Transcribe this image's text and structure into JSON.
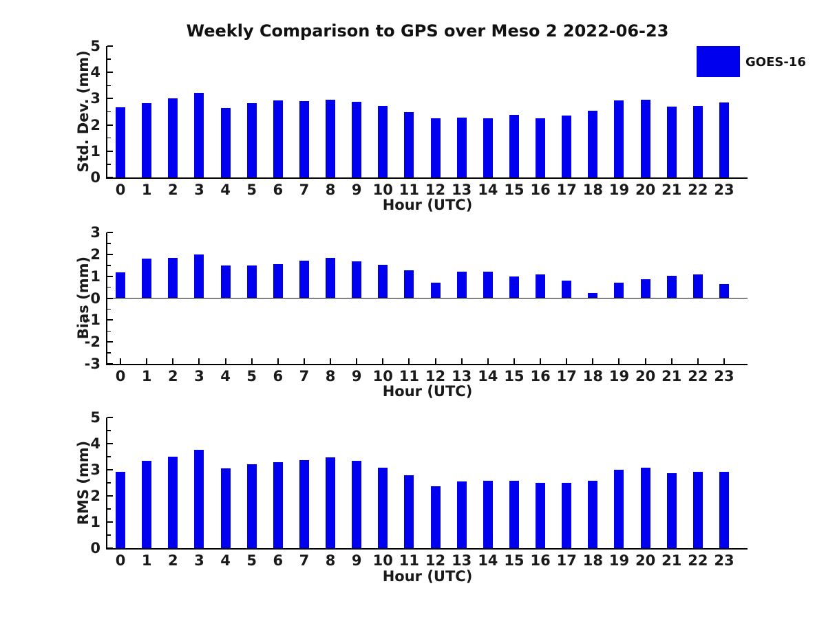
{
  "figure": {
    "title": "Weekly Comparison to GPS over Meso 2 2022-06-23",
    "legend": {
      "label": "GOES-16",
      "position": "upper right"
    }
  },
  "colors": {
    "bar": "#0000ee",
    "text": "#1a1a1a",
    "axis": "#000000"
  },
  "chart_data": [
    {
      "type": "bar",
      "series_name": "GOES-16",
      "ylabel": "Std. Dev. (mm)",
      "xlabel": "Hour (UTC)",
      "categories": [
        "0",
        "1",
        "2",
        "3",
        "4",
        "5",
        "6",
        "7",
        "8",
        "9",
        "10",
        "11",
        "12",
        "13",
        "14",
        "15",
        "16",
        "17",
        "18",
        "19",
        "20",
        "21",
        "22",
        "23"
      ],
      "values": [
        2.66,
        2.83,
        3.0,
        3.22,
        2.64,
        2.84,
        2.92,
        2.9,
        2.95,
        2.87,
        2.72,
        2.5,
        2.26,
        2.29,
        2.26,
        2.39,
        2.26,
        2.36,
        2.55,
        2.92,
        2.96,
        2.7,
        2.71,
        2.85
      ],
      "ylim": [
        0,
        5
      ],
      "yticks": [
        0,
        1,
        2,
        3,
        4,
        5
      ],
      "minor_ytick_step": 0.5,
      "grid": false
    },
    {
      "type": "bar",
      "series_name": "GOES-16",
      "ylabel": "Bias (mm)",
      "xlabel": "Hour (UTC)",
      "categories": [
        "0",
        "1",
        "2",
        "3",
        "4",
        "5",
        "6",
        "7",
        "8",
        "9",
        "10",
        "11",
        "12",
        "13",
        "14",
        "15",
        "16",
        "17",
        "18",
        "19",
        "20",
        "21",
        "22",
        "23"
      ],
      "values": [
        1.17,
        1.82,
        1.85,
        2.01,
        1.48,
        1.48,
        1.57,
        1.72,
        1.85,
        1.67,
        1.51,
        1.27,
        0.7,
        1.2,
        1.21,
        0.98,
        1.08,
        0.8,
        0.22,
        0.72,
        0.86,
        1.02,
        1.08,
        0.64
      ],
      "ylim": [
        -3,
        3
      ],
      "yticks": [
        -3,
        -2,
        -1,
        0,
        1,
        2,
        3
      ],
      "minor_ytick_step": 0.5,
      "grid": false
    },
    {
      "type": "bar",
      "series_name": "GOES-16",
      "ylabel": "RMS (mm)",
      "xlabel": "Hour (UTC)",
      "categories": [
        "0",
        "1",
        "2",
        "3",
        "4",
        "5",
        "6",
        "7",
        "8",
        "9",
        "10",
        "11",
        "12",
        "13",
        "14",
        "15",
        "16",
        "17",
        "18",
        "19",
        "20",
        "21",
        "22",
        "23"
      ],
      "values": [
        2.91,
        3.35,
        3.5,
        3.77,
        3.04,
        3.2,
        3.3,
        3.37,
        3.48,
        3.33,
        3.08,
        2.8,
        2.36,
        2.56,
        2.57,
        2.59,
        2.51,
        2.49,
        2.57,
        2.99,
        3.07,
        2.87,
        2.93,
        2.92
      ],
      "ylim": [
        0,
        5
      ],
      "yticks": [
        0,
        1,
        2,
        3,
        4,
        5
      ],
      "minor_ytick_step": 0.5,
      "grid": false
    }
  ]
}
